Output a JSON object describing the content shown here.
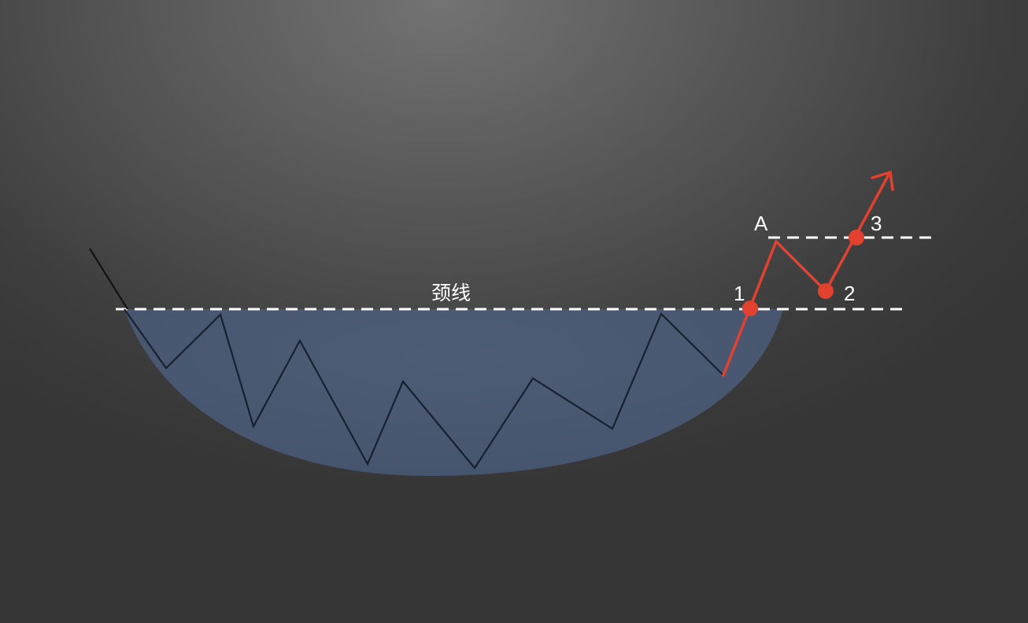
{
  "diagram": {
    "neckline_label": "颈线",
    "points": [
      {
        "id": "point-1",
        "label": "1"
      },
      {
        "id": "point-2",
        "label": "2"
      },
      {
        "id": "point-3",
        "label": "3"
      },
      {
        "id": "point-a",
        "label": "A"
      }
    ],
    "colors": {
      "bowl_fill": "#4b5a74",
      "price_line": "#17202e",
      "breakout_line": "#e3412f",
      "dashed_lines": "#ffffff",
      "background": "#4a4a4a"
    },
    "icons": [
      "up-arrow-icon"
    ]
  }
}
